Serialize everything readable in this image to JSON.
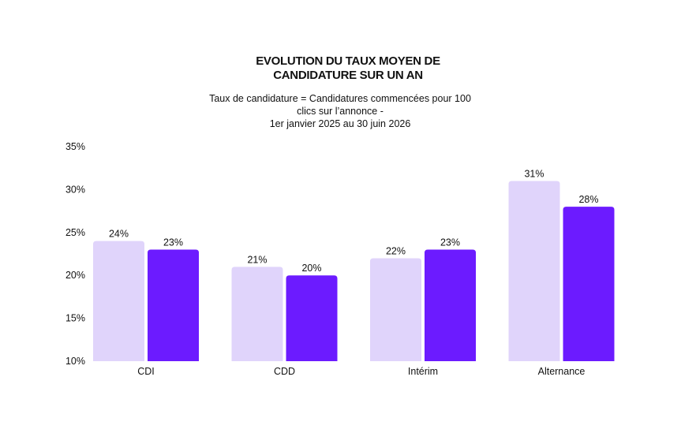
{
  "chart_data": {
    "type": "bar",
    "title": "EVOLUTION DU TAUX MOYEN DE\nCANDIDATURE SUR UN AN",
    "subtitle": "Taux de candidature = Candidatures commencées pour 100\nclics sur l’annonce -\n1er janvier 2025 au 30 juin 2026",
    "categories": [
      "CDI",
      "CDD",
      "Intérim",
      "Alternance"
    ],
    "series": [
      {
        "values": [
          24,
          21,
          22,
          31
        ],
        "color": "#e0d4fb",
        "labels": [
          "24%",
          "21%",
          "22%",
          "31%"
        ]
      },
      {
        "values": [
          23,
          20,
          23,
          28
        ],
        "color": "#6c1bff",
        "labels": [
          "23%",
          "20%",
          "23%",
          "28%"
        ]
      }
    ],
    "ylim": [
      10,
      35
    ],
    "yticks": [
      35,
      30,
      25,
      20,
      15,
      10
    ],
    "ytick_labels": [
      "35%",
      "30%",
      "25%",
      "20%",
      "15%",
      "10%"
    ],
    "xlabel": "",
    "ylabel": "",
    "grid": false,
    "legend": "none"
  }
}
